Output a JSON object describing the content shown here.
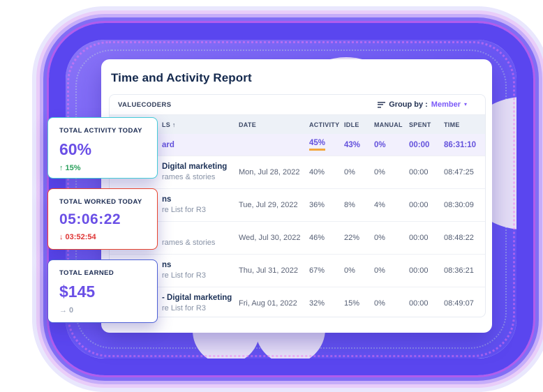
{
  "page": {
    "title": "Time and Activity Report"
  },
  "colors": {
    "accent_purple": "#6a4fe6",
    "ring_purple": "#6052f1",
    "summary_purple": "#6452dc",
    "underline_orange": "#f2a73b",
    "positive_green": "#2ba05c",
    "negative_red": "#de3434",
    "neutral_gray": "#9ba4b6",
    "card1_border": "#45cbd8",
    "card2_border": "#e8432d",
    "card3_border": "#4c5fd5"
  },
  "icons": {
    "sort": "sort-lines-icon",
    "caret": "▾"
  },
  "report": {
    "workspace": "VALUECODERS",
    "group_by_label": "Group by :",
    "group_by_value": "Member",
    "columns": [
      "LS ↑",
      "DATE",
      "ACTIVITY",
      "IDLE",
      "MANUAL",
      "SPENT",
      "TIME"
    ],
    "summary_row": {
      "name": "ard",
      "activity": "45%",
      "idle": "43%",
      "manual": "0%",
      "spent": "00:00",
      "time": "86:31:10"
    },
    "rows": [
      {
        "title": "Digital marketing",
        "subtitle": "rames & stories",
        "date": "Mon, Jul 28, 2022",
        "activity": "40%",
        "idle": "0%",
        "manual": "0%",
        "spent": "00:00",
        "time": "08:47:25"
      },
      {
        "title": "ns",
        "subtitle": "re List for R3",
        "date": "Tue, Jul 29, 2022",
        "activity": "36%",
        "idle": "8%",
        "manual": "4%",
        "spent": "00:00",
        "time": "08:30:09"
      },
      {
        "title": "",
        "subtitle": "rames & stories",
        "date": "Wed, Jul 30, 2022",
        "activity": "46%",
        "idle": "22%",
        "manual": "0%",
        "spent": "00:00",
        "time": "08:48:22"
      },
      {
        "title": "ns",
        "subtitle": "re List for R3",
        "date": "Thu, Jul 31, 2022",
        "activity": "67%",
        "idle": "0%",
        "manual": "0%",
        "spent": "00:00",
        "time": "08:36:21"
      },
      {
        "title": "- Digital marketing",
        "subtitle": "re List for R3",
        "date": "Fri, Aug 01, 2022",
        "activity": "32%",
        "idle": "15%",
        "manual": "0%",
        "spent": "00:00",
        "time": "08:49:07"
      }
    ]
  },
  "stat_cards": [
    {
      "label": "TOTAL ACTIVITY TODAY",
      "value": "60%",
      "delta": "↑ 15%",
      "border": "#45cbd8",
      "delta_color": "#2ba05c"
    },
    {
      "label": "TOTAL WORKED TODAY",
      "value": "05:06:22",
      "delta": "↓ 03:52:54",
      "border": "#e8432d",
      "delta_color": "#de3434"
    },
    {
      "label": "TOTAL EARNED",
      "value": "$145",
      "delta": "→ 0",
      "border": "#4c5fd5",
      "delta_color": "#9ba4b6"
    }
  ]
}
